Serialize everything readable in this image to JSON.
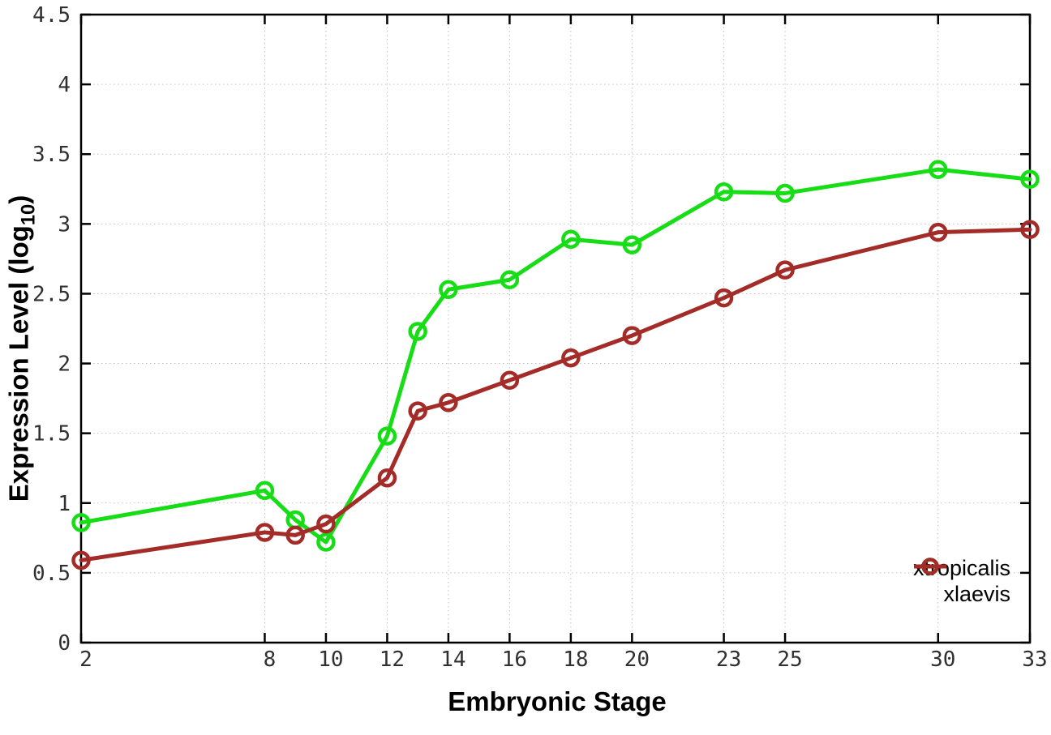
{
  "chart_data": {
    "type": "line",
    "title": "",
    "xlabel": "Embryonic Stage",
    "ylabel_prefix": "Expression Level (log",
    "ylabel_sub": "10",
    "ylabel_suffix": ")",
    "x": [
      2,
      8,
      9,
      10,
      12,
      13,
      14,
      16,
      18,
      20,
      23,
      25,
      30,
      33
    ],
    "series": [
      {
        "name": "xtropicalis",
        "color": "#16dd16",
        "values": [
          0.86,
          1.09,
          0.88,
          0.72,
          1.48,
          2.23,
          2.53,
          2.6,
          2.89,
          2.85,
          3.23,
          3.22,
          3.39,
          3.32
        ]
      },
      {
        "name": "xlaevis",
        "color": "#a32c28",
        "values": [
          0.59,
          0.79,
          0.77,
          0.85,
          1.18,
          1.66,
          1.72,
          1.88,
          2.04,
          2.2,
          2.47,
          2.67,
          2.94,
          2.96
        ]
      }
    ],
    "xlim": [
      2,
      33
    ],
    "ylim": [
      0,
      4.5
    ],
    "x_ticks": [
      2,
      8,
      10,
      12,
      14,
      16,
      18,
      20,
      23,
      25,
      30,
      33
    ],
    "x_tick_labels": [
      "2",
      "8",
      "10",
      "12",
      "14",
      "16",
      "18",
      "20",
      "23",
      "25",
      "30",
      "33"
    ],
    "y_ticks": [
      0,
      0.5,
      1,
      1.5,
      2,
      2.5,
      3,
      3.5,
      4,
      4.5
    ],
    "y_tick_labels": [
      "0",
      "0.5",
      "1",
      "1.5",
      "2",
      "2.5",
      "3",
      "3.5",
      "4",
      "4.5"
    ],
    "grid": true,
    "legend_position": "inside-bottom-right",
    "colors": {
      "background": "#ffffff",
      "grid": "#c2c2c2",
      "axis": "#000000",
      "tick_label": "#303030"
    }
  }
}
